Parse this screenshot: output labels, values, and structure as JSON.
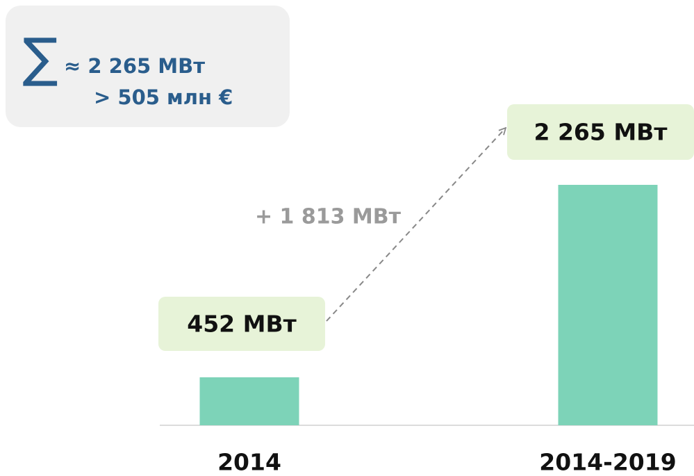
{
  "chart_data": {
    "type": "bar",
    "categories": [
      "2014",
      "2014-2019"
    ],
    "values": [
      452,
      2265
    ],
    "value_labels": [
      "452 МВт",
      "2 265 МВт"
    ],
    "color": "#7dd3b8",
    "annotations": [
      "+ 1 813 МВт"
    ],
    "summary": {
      "symbol": "∑",
      "lines": [
        "≈ 2 265 МВт",
        "> 505 млн €"
      ]
    }
  }
}
